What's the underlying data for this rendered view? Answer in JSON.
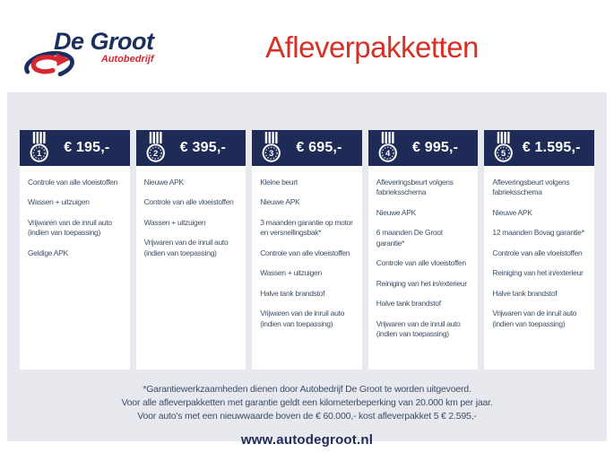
{
  "brand": {
    "name": "De Groot",
    "tagline": "Autobedrijf"
  },
  "page_title": "Afleverpakketten",
  "packages": [
    {
      "number": "1",
      "price": "€ 195,-",
      "features": [
        "Controle van alle vloeistoffen",
        "Wassen + uitzuigen",
        "Vrijwaren van de inruil auto (indien van toepassing)",
        "Geldige APK"
      ]
    },
    {
      "number": "2",
      "price": "€ 395,-",
      "features": [
        "Nieuwe APK",
        "Controle van alle vloeistoffen",
        "Wassen + uitzuigen",
        "Vrijwaren van de inruil auto (indien van toepassing)"
      ]
    },
    {
      "number": "3",
      "price": "€ 695,-",
      "features": [
        "Kleine beurt",
        "Nieuwe APK",
        "3 maanden garantie op motor en versnellingsbak*",
        "Controle van alle vloeistoffen",
        "Wassen + uitzuigen",
        "Halve tank brandstof",
        "Vrijwaren van de inruil auto (indien van toepassing)"
      ]
    },
    {
      "number": "4",
      "price": "€ 995,-",
      "features": [
        "Afleveringsbeurt volgens fabrieksschema",
        "Nieuwe APK",
        "6 maanden De Groot garantie*",
        "Controle van alle vloeistoffen",
        "Reiniging van het in/exterieur",
        "Halve tank brandstof",
        "Vrijwaren van de inruil auto (indien van toepassing)"
      ]
    },
    {
      "number": "5",
      "price": "€ 1.595,-",
      "features": [
        "Afleveringsbeurt volgens fabrieksschema",
        "Nieuwe APK",
        "12 maanden Bovag garantie*",
        "Controle van alle vloeistoffen",
        "Reiniging van het in/exterieur",
        "Halve tank brandstof",
        "Vrijwaren van de inruil auto (indien van toepassing)"
      ]
    }
  ],
  "footer": {
    "notes": [
      "*Garantiewerkzaamheden dienen door Autobedrijf De Groot te worden uitgevoerd.",
      "Voor alle afleverpakketten met garantie geldt een kilometerbeperking van 20.000 km per jaar.",
      "Voor auto's met een nieuwwaarde boven de € 60.000,- kost afleverpakket 5 € 2.595,-"
    ],
    "website": "www.autodegroot.nl"
  },
  "icons": {
    "medal": "medal-icon",
    "logo": "degroot-logo-swoosh-icon"
  },
  "colors": {
    "navy": "#1f2b57",
    "red": "#d93026",
    "panel_gray": "#e8e9ee",
    "body_text": "#3f4f66",
    "white": "#ffffff"
  }
}
